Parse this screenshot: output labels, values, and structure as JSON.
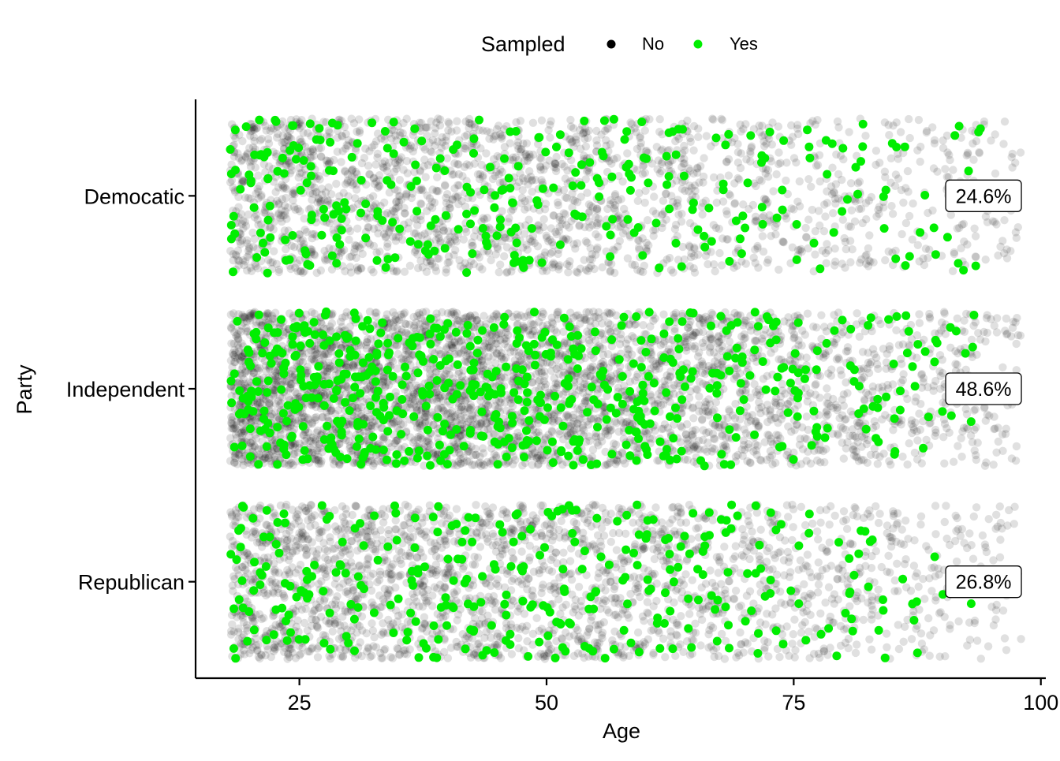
{
  "chart_data": {
    "type": "scatter",
    "subtype": "jittered strip plot",
    "xlabel": "Age",
    "ylabel": "Party",
    "xlim": [
      14.5,
      100.5
    ],
    "x_ticks": [
      25,
      50,
      75,
      100
    ],
    "categories": [
      "Democatic",
      "Independent",
      "Republican"
    ],
    "legend": {
      "title": "Sampled",
      "position": "top",
      "entries": [
        {
          "label": "No",
          "color": "#000000"
        },
        {
          "label": "Yes",
          "color": "#00ee00"
        }
      ]
    },
    "annotations": [
      {
        "category": "Democatic",
        "x": 94.2,
        "text": "24.6%"
      },
      {
        "category": "Independent",
        "x": 94.2,
        "text": "48.6%"
      },
      {
        "category": "Republican",
        "x": 94.2,
        "text": "26.8%"
      }
    ],
    "series": [
      {
        "name": "No",
        "color": "#000000",
        "opacity": 0.12,
        "age_range": [
          18,
          98
        ],
        "counts_approx": {
          "Democatic": 2100,
          "Independent": 4100,
          "Republican": 2300
        }
      },
      {
        "name": "Yes",
        "color": "#00ee00",
        "opacity": 1.0,
        "age_range": [
          18,
          94
        ],
        "counts_approx": {
          "Democatic": 300,
          "Independent": 590,
          "Republican": 320
        }
      }
    ],
    "grid": false,
    "colors": {
      "no": "#000000",
      "yes": "#00ee00",
      "axis": "#000000"
    }
  }
}
